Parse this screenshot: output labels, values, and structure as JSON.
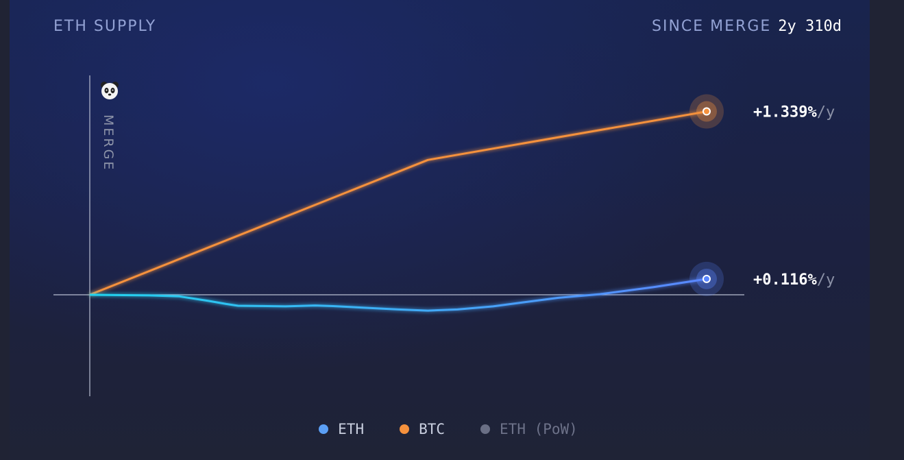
{
  "header": {
    "title": "ETH SUPPLY",
    "since_label": "SINCE MERGE",
    "since_value": "2y 310d"
  },
  "merge_label": "MERGE",
  "colors": {
    "eth": "#5b9ff5",
    "btc": "#f5913d",
    "eth_pow": "#6a6f85",
    "eth_line_start": "#22d3ee",
    "eth_line_end": "#5b87ff"
  },
  "chart_data": {
    "type": "line",
    "title": "ETH SUPPLY",
    "x_unit": "days since merge",
    "xlim": [
      0,
      1040
    ],
    "y_unit": "% supply change since merge",
    "ylim": [
      -3.2,
      6.7
    ],
    "series": [
      {
        "name": "BTC",
        "end_label": "+1.339%",
        "end_unit": "/y",
        "points": [
          [
            0,
            0
          ],
          [
            570,
            4.42
          ],
          [
            1040,
            6.01
          ]
        ]
      },
      {
        "name": "ETH",
        "end_label": "+0.116%",
        "end_unit": "/y",
        "points": [
          [
            0,
            0
          ],
          [
            100,
            -0.02
          ],
          [
            150,
            -0.05
          ],
          [
            200,
            -0.2
          ],
          [
            230,
            -0.3
          ],
          [
            250,
            -0.36
          ],
          [
            300,
            -0.37
          ],
          [
            330,
            -0.38
          ],
          [
            380,
            -0.35
          ],
          [
            410,
            -0.37
          ],
          [
            460,
            -0.42
          ],
          [
            520,
            -0.48
          ],
          [
            570,
            -0.52
          ],
          [
            620,
            -0.48
          ],
          [
            680,
            -0.38
          ],
          [
            730,
            -0.25
          ],
          [
            790,
            -0.1
          ],
          [
            860,
            0.02
          ],
          [
            950,
            0.25
          ],
          [
            1040,
            0.52
          ]
        ]
      }
    ],
    "legend": [
      "ETH",
      "BTC",
      "ETH (PoW)"
    ]
  }
}
